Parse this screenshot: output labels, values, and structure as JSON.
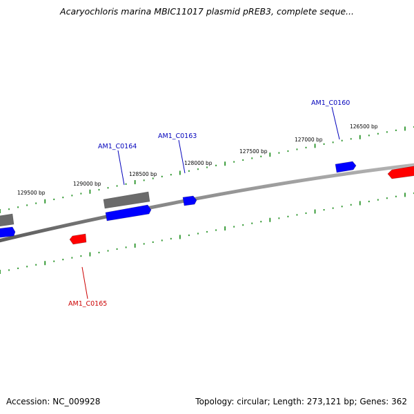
{
  "title": "Acaryochloris marina MBIC11017 plasmid pREB3, complete seque...",
  "footer": {
    "accession": "Accession: NC_009928",
    "stats": "Topology: circular; Length: 273,121 bp; Genes: 362"
  },
  "colors": {
    "background": "#ffffff",
    "backbone": "#8a8a8a",
    "tick_marks": "#118811",
    "forward_gene": "#0000ff",
    "reverse_gene": "#ff0000",
    "other_feature": "#6b6b6b",
    "forward_label": "#0000bb",
    "reverse_label": "#cc0000"
  },
  "scale": {
    "unit": "bp",
    "labels": [
      "126500 bp",
      "127000 bp",
      "127500 bp",
      "128000 bp",
      "128500 bp",
      "129000 bp",
      "129500 bp"
    ]
  },
  "gene_labels": {
    "forward": [
      "AM1_C0160",
      "AM1_C0163",
      "AM1_C0164"
    ],
    "reverse": [
      "AM1_C0165"
    ]
  }
}
